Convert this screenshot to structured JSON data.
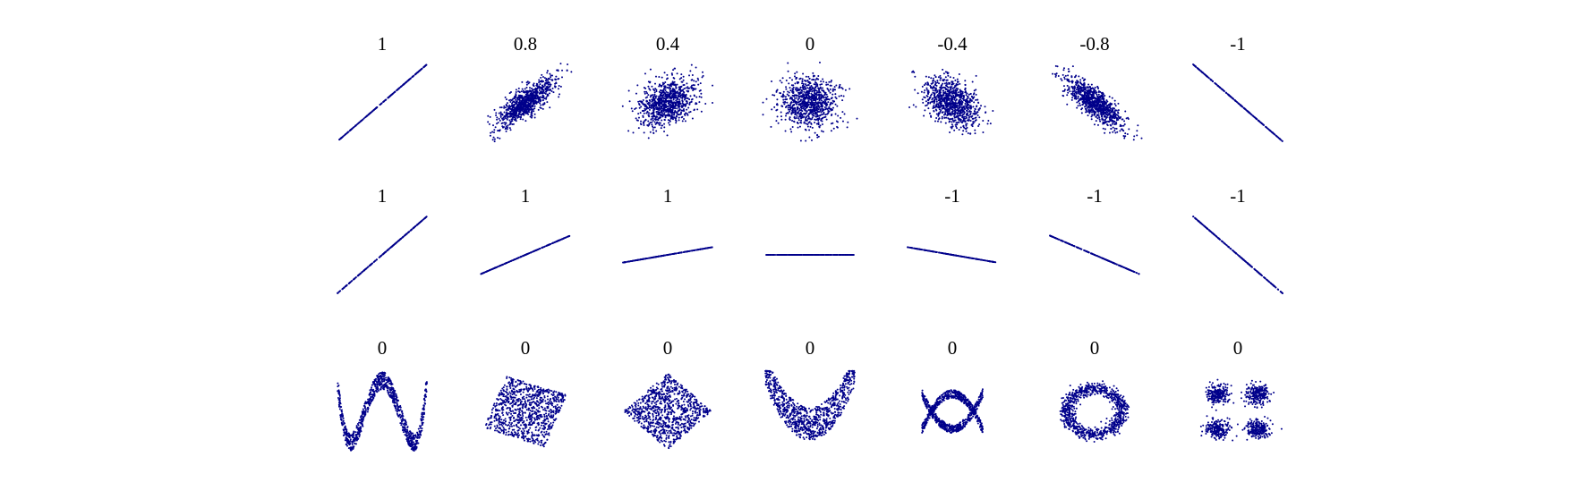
{
  "chart_data": {
    "type": "scatter",
    "point_color": "#00008b",
    "background": "#ffffff",
    "grid": false,
    "rows": [
      {
        "panels": [
          {
            "label": "1",
            "shape": "linear",
            "r": 1,
            "slope": 1
          },
          {
            "label": "0.8",
            "shape": "gaussian",
            "r": 0.8
          },
          {
            "label": "0.4",
            "shape": "gaussian",
            "r": 0.4
          },
          {
            "label": "0",
            "shape": "gaussian",
            "r": 0
          },
          {
            "label": "-0.4",
            "shape": "gaussian",
            "r": -0.4
          },
          {
            "label": "-0.8",
            "shape": "gaussian",
            "r": -0.8
          },
          {
            "label": "-1",
            "shape": "linear",
            "r": -1,
            "slope": -1
          }
        ]
      },
      {
        "panels": [
          {
            "label": "1",
            "shape": "linear",
            "r": 1,
            "slope": 1.0
          },
          {
            "label": "1",
            "shape": "linear",
            "r": 1,
            "slope": 0.5
          },
          {
            "label": "1",
            "shape": "linear",
            "r": 1,
            "slope": 0.2
          },
          {
            "label": "",
            "shape": "linear",
            "r": null,
            "slope": 0
          },
          {
            "label": "-1",
            "shape": "linear",
            "r": -1,
            "slope": -0.2
          },
          {
            "label": "-1",
            "shape": "linear",
            "r": -1,
            "slope": -0.5
          },
          {
            "label": "-1",
            "shape": "linear",
            "r": -1,
            "slope": -1.0
          }
        ]
      },
      {
        "panels": [
          {
            "label": "0",
            "shape": "w-curve",
            "r": 0
          },
          {
            "label": "0",
            "shape": "rotated-square",
            "r": 0
          },
          {
            "label": "0",
            "shape": "diamond",
            "r": 0
          },
          {
            "label": "0",
            "shape": "parabola",
            "r": 0
          },
          {
            "label": "0",
            "shape": "x-shape",
            "r": 0
          },
          {
            "label": "0",
            "shape": "ring",
            "r": 0
          },
          {
            "label": "0",
            "shape": "four-clusters",
            "r": 0
          }
        ]
      }
    ]
  }
}
